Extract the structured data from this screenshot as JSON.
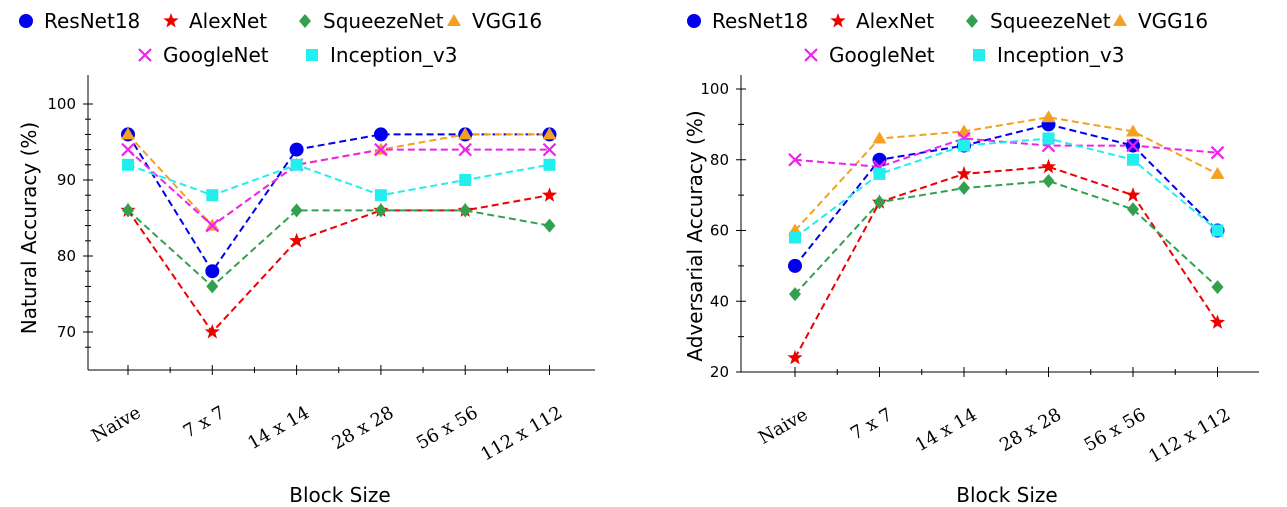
{
  "chart_data": [
    {
      "type": "line",
      "xlabel": "Block Size",
      "ylabel": "Natural Accuracy (%)",
      "categories": [
        "Naive",
        "7 x 7",
        "14 x 14",
        "28 x 28",
        "56 x 56",
        "112 x 112"
      ],
      "ylim": [
        65,
        102
      ],
      "yticks": [
        "70",
        "80",
        "90",
        "100"
      ],
      "grid": false,
      "legend_position": "top",
      "series": [
        {
          "name": "ResNet18",
          "color": "#0000ee",
          "marker": "circle",
          "values": [
            96,
            78,
            94,
            96,
            96,
            96
          ]
        },
        {
          "name": "AlexNet",
          "color": "#ee0000",
          "marker": "star",
          "values": [
            86,
            70,
            82,
            86,
            86,
            88
          ]
        },
        {
          "name": "SqueezeNet",
          "color": "#33a050",
          "marker": "diamond",
          "values": [
            86,
            76,
            86,
            86,
            86,
            84
          ]
        },
        {
          "name": "VGG16",
          "color": "#f5a020",
          "marker": "triangle",
          "values": [
            96,
            84,
            92,
            94,
            96,
            96
          ]
        },
        {
          "name": "GoogleNet",
          "color": "#ee22ee",
          "marker": "x",
          "values": [
            94,
            84,
            92,
            94,
            94,
            94
          ]
        },
        {
          "name": "Inception_v3",
          "color": "#22eeee",
          "marker": "square",
          "values": [
            92,
            88,
            92,
            88,
            90,
            92
          ]
        }
      ]
    },
    {
      "type": "line",
      "xlabel": "Block Size",
      "ylabel": "Adversarial Accuracy (%)",
      "categories": [
        "Naive",
        "7 x 7",
        "14 x 14",
        "28 x 28",
        "56 x 56",
        "112 x 112"
      ],
      "ylim": [
        20,
        104
      ],
      "yticks": [
        "20",
        "40",
        "60",
        "80",
        "100"
      ],
      "grid": false,
      "legend_position": "top",
      "series": [
        {
          "name": "ResNet18",
          "color": "#0000ee",
          "marker": "circle",
          "values": [
            50,
            80,
            84,
            90,
            84,
            60
          ]
        },
        {
          "name": "AlexNet",
          "color": "#ee0000",
          "marker": "star",
          "values": [
            24,
            68,
            76,
            78,
            70,
            34
          ]
        },
        {
          "name": "SqueezeNet",
          "color": "#33a050",
          "marker": "diamond",
          "values": [
            42,
            68,
            72,
            74,
            66,
            44
          ]
        },
        {
          "name": "VGG16",
          "color": "#f5a020",
          "marker": "triangle",
          "values": [
            60,
            86,
            88,
            92,
            88,
            76
          ]
        },
        {
          "name": "GoogleNet",
          "color": "#ee22ee",
          "marker": "x",
          "values": [
            80,
            78,
            86,
            84,
            84,
            82
          ]
        },
        {
          "name": "Inception_v3",
          "color": "#22eeee",
          "marker": "square",
          "values": [
            58,
            76,
            84,
            86,
            80,
            60
          ]
        }
      ]
    }
  ]
}
